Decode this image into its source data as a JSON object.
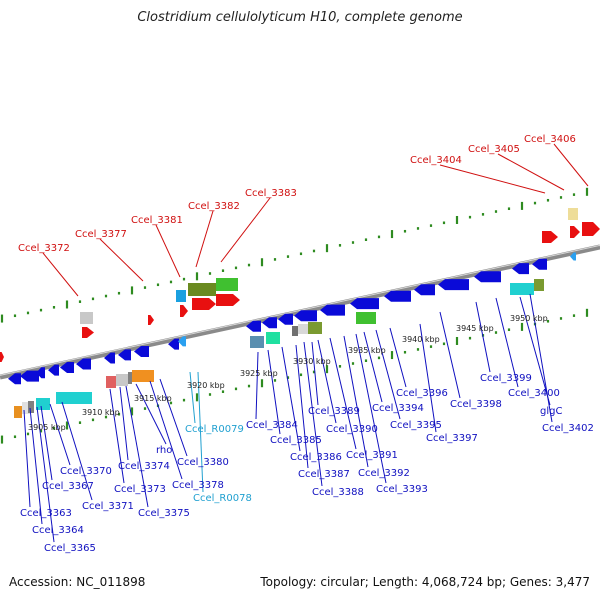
{
  "title": "Clostridium cellulolyticum H10, complete genome",
  "footer": {
    "accession": "Accession: NC_011898",
    "summary": "Topology: circular; Length: 4,068,724 bp; Genes: 3,477"
  },
  "colors": {
    "highlight_label": "#d01010",
    "gene_label": "#1010c0",
    "rna_label": "#20a0d0",
    "gene_arrow": "#0a0ad8",
    "backbone": "#808080",
    "tick_mark": "#2e8b20"
  },
  "kbp_marks": [
    "3905 kbp",
    "3910 kbp",
    "3915 kbp",
    "3920 kbp",
    "3925 kbp",
    "3930 kbp",
    "3935 kbp",
    "3940 kbp",
    "3945 kbp",
    "3950 kbp"
  ],
  "top_labels": [
    "Ccel_3372",
    "Ccel_3377",
    "Ccel_3381",
    "Ccel_3382",
    "Ccel_3383",
    "Ccel_3404",
    "Ccel_3405",
    "Ccel_3406"
  ],
  "bottom_labels": [
    "Ccel_3363",
    "Ccel_3364",
    "Ccel_3365",
    "Ccel_3367",
    "Ccel_3370",
    "Ccel_3371",
    "Ccel_3373",
    "Ccel_3374",
    "Ccel_3375",
    "rho",
    "Ccel_3378",
    "Ccel_3380",
    "Ccel_R0079",
    "Ccel_R0078",
    "Ccel_3384",
    "Ccel_3385",
    "Ccel_3386",
    "Ccel_3387",
    "Ccel_3388",
    "Ccel_3389",
    "Ccel_3390",
    "Ccel_3391",
    "Ccel_3392",
    "Ccel_3393",
    "Ccel_3394",
    "Ccel_3395",
    "Ccel_3396",
    "Ccel_3397",
    "Ccel_3398",
    "Ccel_3399",
    "Ccel_3400",
    "glgC",
    "Ccel_3402"
  ]
}
